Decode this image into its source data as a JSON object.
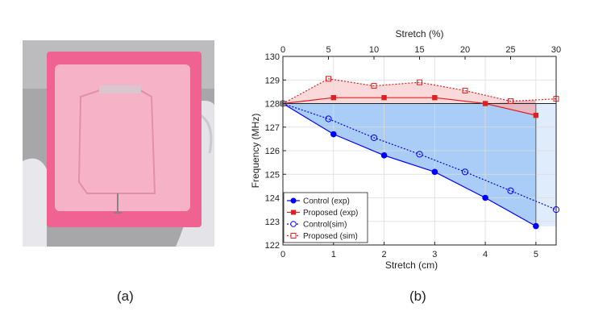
{
  "captions": {
    "a": "(a)",
    "b": "(b)"
  },
  "photo": {
    "description_icon": "antenna-photo",
    "colors": {
      "background": "#a9a9a9",
      "substrate": "#f06292",
      "overlay": "#f8bbd0",
      "glove": "#e6e6ea"
    }
  },
  "chart_data": {
    "type": "line",
    "xlabel": "Stretch (cm)",
    "ylabel": "Frequency (MHz)",
    "top_xlabel": "Stretch (%)",
    "xlim": [
      0,
      5.4
    ],
    "ylim": [
      122,
      130
    ],
    "top_xlim": [
      0,
      30
    ],
    "xticks": [
      0,
      1,
      2,
      3,
      4,
      5
    ],
    "yticks": [
      122,
      123,
      124,
      125,
      126,
      127,
      128,
      129,
      130
    ],
    "top_xticks": [
      0,
      5,
      10,
      15,
      20,
      25,
      30
    ],
    "grid": true,
    "legend_position": "bottom-left",
    "colors": {
      "control": "#0000ff",
      "proposed": "#e02020",
      "fill_blue": "#a9cdf7",
      "fill_blue_light": "#deecfb",
      "fill_red": "#f8d0d0"
    },
    "series": [
      {
        "name": "Control (exp)",
        "style": "solid-filled-circle",
        "x": [
          0,
          1,
          2,
          3,
          4,
          5
        ],
        "y": [
          128.0,
          126.7,
          125.8,
          125.1,
          124.0,
          122.8
        ]
      },
      {
        "name": "Proposed (exp)",
        "style": "solid-filled-square",
        "x": [
          0,
          1,
          2,
          3,
          4,
          5
        ],
        "y": [
          128.0,
          128.25,
          128.25,
          128.25,
          128.0,
          127.5
        ]
      },
      {
        "name": "Control(sim)",
        "style": "dotted-open-circle",
        "x": [
          0,
          0.9,
          1.8,
          2.7,
          3.6,
          4.5,
          5.4
        ],
        "y": [
          128.0,
          127.35,
          126.55,
          125.85,
          125.1,
          124.3,
          123.5
        ]
      },
      {
        "name": "Proposed (sim)",
        "style": "dotted-open-square",
        "x": [
          0,
          0.9,
          1.8,
          2.7,
          3.6,
          4.5,
          5.4
        ],
        "y": [
          128.0,
          129.05,
          128.75,
          128.9,
          128.55,
          128.1,
          128.2
        ]
      }
    ]
  }
}
